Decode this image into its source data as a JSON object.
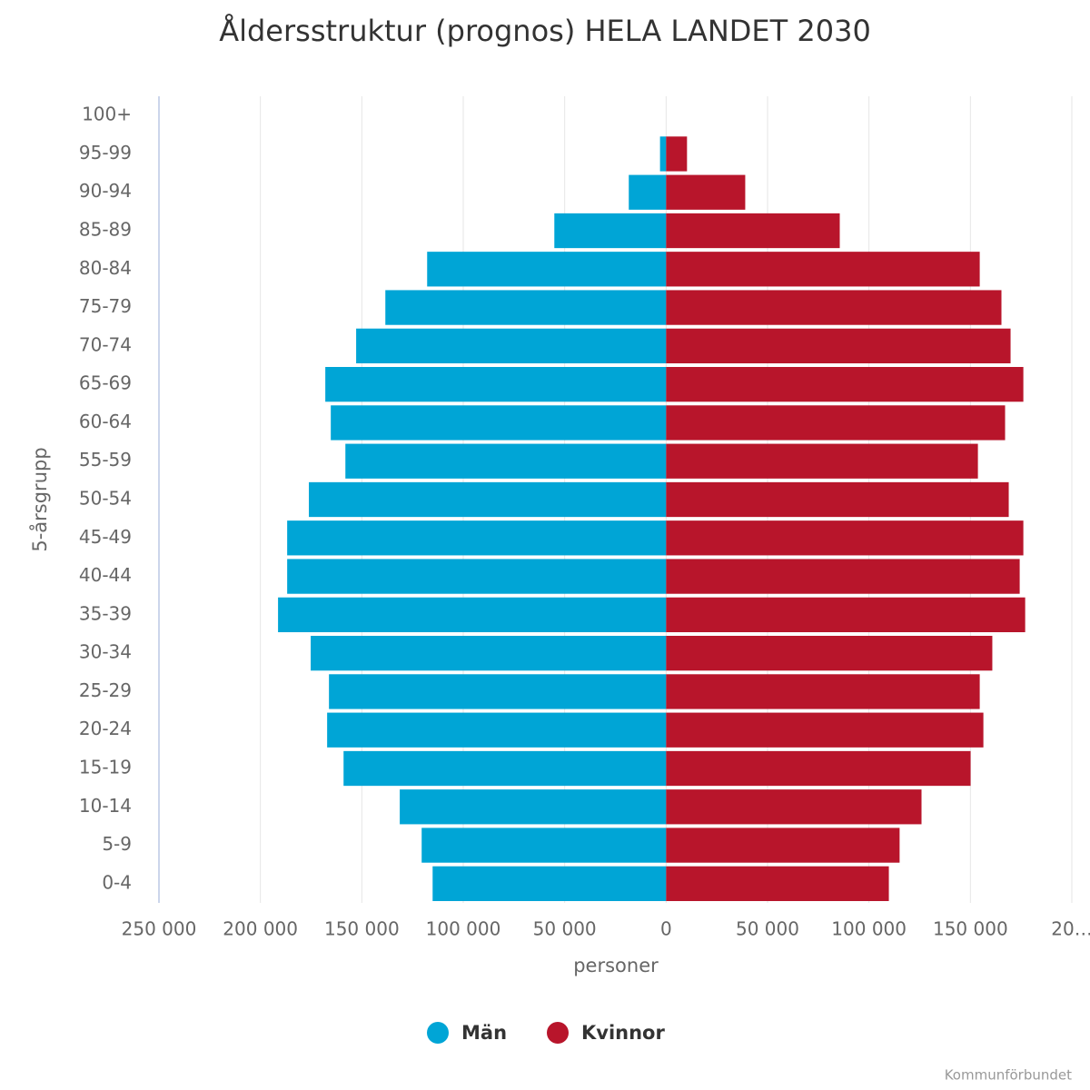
{
  "chart_data": {
    "type": "pyramid",
    "title": "Åldersstruktur (prognos) HELA LANDET 2030",
    "x_label": "personer",
    "y_label": "5-årsgrupp",
    "credit": "Kommunförbundet",
    "categories": [
      "100+",
      "95-99",
      "90-94",
      "85-89",
      "80-84",
      "75-79",
      "70-74",
      "65-69",
      "60-64",
      "55-59",
      "50-54",
      "45-49",
      "40-44",
      "35-39",
      "30-34",
      "25-29",
      "20-24",
      "15-19",
      "10-14",
      "5-9",
      "0-4"
    ],
    "series": [
      {
        "name": "Män",
        "color": "#00a5d6",
        "values": [
          0,
          -3000,
          -18400,
          -55100,
          -117800,
          -138400,
          -152800,
          -168000,
          -165300,
          -158100,
          -176100,
          -186800,
          -186800,
          -191300,
          -175200,
          -166200,
          -167100,
          -159000,
          -131300,
          -120500,
          -115100
        ]
      },
      {
        "name": "Kvinnor",
        "color": "#b8152b",
        "values": [
          0,
          10300,
          39000,
          85600,
          154600,
          165300,
          169800,
          176100,
          167100,
          153700,
          168900,
          176100,
          174300,
          177000,
          160800,
          154600,
          156400,
          150100,
          125900,
          115100,
          109800
        ]
      }
    ],
    "xlim": [
      -250000,
      200000
    ],
    "xticks": [
      {
        "value": -250000,
        "label": "250 000"
      },
      {
        "value": -200000,
        "label": "200 000"
      },
      {
        "value": -150000,
        "label": "150 000"
      },
      {
        "value": -100000,
        "label": "100 000"
      },
      {
        "value": -50000,
        "label": "50 000"
      },
      0,
      {
        "value": 50000,
        "label": "50 000"
      },
      {
        "value": 100000,
        "label": "100 000"
      },
      {
        "value": 150000,
        "label": "150 000"
      },
      {
        "value": 200000,
        "label": "20…"
      }
    ],
    "grid": true
  }
}
